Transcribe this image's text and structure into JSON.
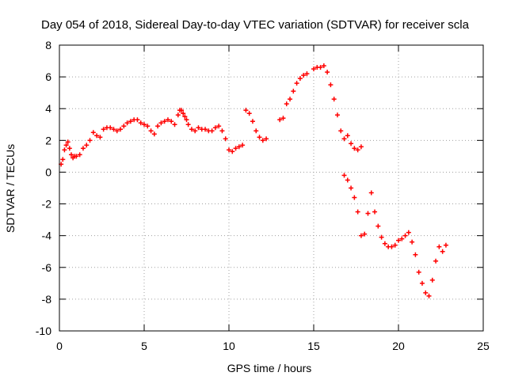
{
  "chart_data": {
    "type": "scatter",
    "title": "Day 054 of 2018, Sidereal Day-to-day VTEC variation (SDTVAR) for receiver scla",
    "xlabel": "GPS time / hours",
    "ylabel": "SDTVAR / TECUs",
    "xlim": [
      0,
      25
    ],
    "ylim": [
      -10,
      8
    ],
    "xticks": [
      "0",
      "5",
      "10",
      "15",
      "20",
      "25"
    ],
    "yticks": [
      "-10",
      "-8",
      "-6",
      "-4",
      "-2",
      "0",
      "2",
      "4",
      "6",
      "8"
    ],
    "grid": true,
    "marker": "+",
    "color": "#ff0000",
    "series": [
      {
        "x": [
          0.1,
          0.2,
          0.3,
          0.4,
          0.5,
          0.6,
          0.7,
          0.8,
          0.9,
          1.0,
          1.2,
          1.4,
          1.6,
          1.8,
          2.0,
          2.2,
          2.4,
          2.6,
          2.8,
          3.0,
          3.2,
          3.4,
          3.6,
          3.8,
          4.0,
          4.2,
          4.4,
          4.6,
          4.8,
          5.0,
          5.2,
          5.4,
          5.6,
          5.8,
          6.0,
          6.2,
          6.4,
          6.6,
          6.8,
          7.0,
          7.1,
          7.2,
          7.3,
          7.4,
          7.5,
          7.6,
          7.8,
          8.0,
          8.2,
          8.4,
          8.6,
          8.8,
          9.0,
          9.2,
          9.4,
          9.6,
          9.8,
          10.0,
          10.2,
          10.4,
          10.6,
          10.8,
          11.0,
          11.2,
          11.4,
          11.6,
          11.8,
          12.0,
          12.2,
          13.0,
          13.2,
          13.4,
          13.6,
          13.8,
          14.0,
          14.2,
          14.4,
          14.6,
          15.0,
          15.2,
          15.4,
          15.6,
          15.8,
          16.0,
          16.2,
          16.4,
          16.6,
          16.8,
          17.0,
          17.2,
          17.4,
          17.6,
          17.8,
          16.8,
          17.0,
          17.2,
          17.4,
          17.6,
          17.8,
          18.0,
          18.2,
          18.4,
          18.6,
          18.8,
          19.0,
          19.2,
          19.4,
          19.6,
          19.8,
          20.0,
          20.2,
          20.4,
          20.6,
          20.8,
          21.0,
          21.2,
          21.4,
          21.6,
          21.8,
          22.0,
          22.2,
          22.4,
          22.6,
          22.8
        ],
        "y": [
          0.5,
          0.8,
          1.4,
          1.7,
          1.9,
          1.5,
          1.1,
          0.9,
          1.0,
          1.0,
          1.1,
          1.5,
          1.7,
          2.0,
          2.5,
          2.3,
          2.2,
          2.7,
          2.8,
          2.8,
          2.7,
          2.6,
          2.7,
          2.9,
          3.1,
          3.2,
          3.3,
          3.3,
          3.1,
          3.0,
          2.9,
          2.6,
          2.4,
          2.9,
          3.1,
          3.2,
          3.3,
          3.2,
          3.0,
          3.6,
          3.9,
          3.9,
          3.7,
          3.5,
          3.3,
          3.0,
          2.7,
          2.6,
          2.8,
          2.7,
          2.7,
          2.6,
          2.6,
          2.8,
          2.9,
          2.6,
          2.1,
          1.4,
          1.3,
          1.5,
          1.6,
          1.7,
          3.9,
          3.7,
          3.2,
          2.6,
          2.2,
          2.0,
          2.1,
          3.3,
          3.4,
          4.3,
          4.6,
          5.1,
          5.6,
          5.9,
          6.1,
          6.2,
          6.5,
          6.6,
          6.6,
          6.7,
          6.3,
          5.5,
          4.6,
          3.6,
          2.6,
          2.1,
          2.3,
          1.8,
          1.5,
          1.4,
          1.6,
          -0.2,
          -0.5,
          -1.0,
          -1.6,
          -2.5,
          -4.0,
          -3.9,
          -2.6,
          -1.3,
          -2.5,
          -3.4,
          -4.1,
          -4.5,
          -4.7,
          -4.7,
          -4.6,
          -4.3,
          -4.2,
          -4.0,
          -3.8,
          -4.4,
          -5.2,
          -6.3,
          -7.0,
          -7.6,
          -7.8,
          -6.8,
          -5.6,
          -4.7,
          -5.0,
          -4.6
        ]
      }
    ]
  }
}
